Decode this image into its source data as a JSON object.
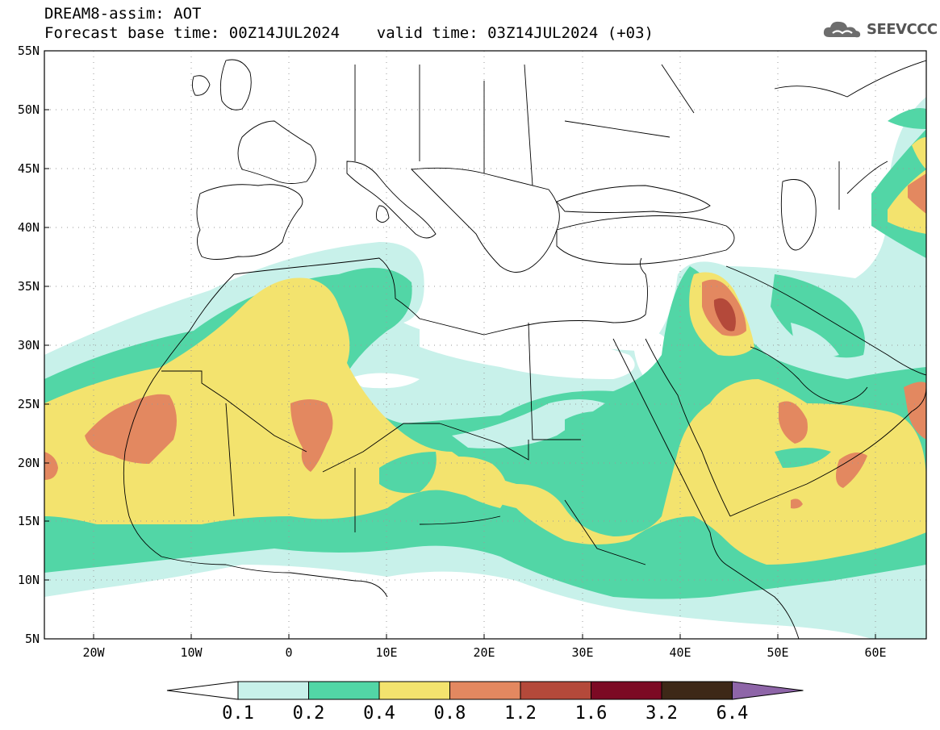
{
  "header": {
    "title_line1": "DREAM8-assim: AOT",
    "title_line2": "Forecast base time: 00Z14JUL2024    valid time: 03Z14JUL2024 (+03)"
  },
  "logo": {
    "text": "SEEVCCC",
    "icon": "cloud-icon"
  },
  "axes": {
    "lat_labels": [
      "55N",
      "50N",
      "45N",
      "40N",
      "35N",
      "30N",
      "25N",
      "20N",
      "15N",
      "10N",
      "5N"
    ],
    "lon_labels": [
      "20W",
      "10W",
      "0",
      "10E",
      "20E",
      "30E",
      "40E",
      "50E",
      "60E"
    ]
  },
  "colorbar": {
    "labels": [
      "0.1",
      "0.2",
      "0.4",
      "0.8",
      "1.2",
      "1.6",
      "3.2",
      "6.4"
    ],
    "colors": [
      "#ffffff",
      "#c8f1ea",
      "#52d6a6",
      "#f3e36e",
      "#e38860",
      "#b4493a",
      "#7c0a24",
      "#3d2817",
      "#8e65a8"
    ]
  },
  "map": {
    "extent": {
      "lon": [
        -25,
        65
      ],
      "lat": [
        5,
        55
      ]
    },
    "variable": "AOT"
  }
}
